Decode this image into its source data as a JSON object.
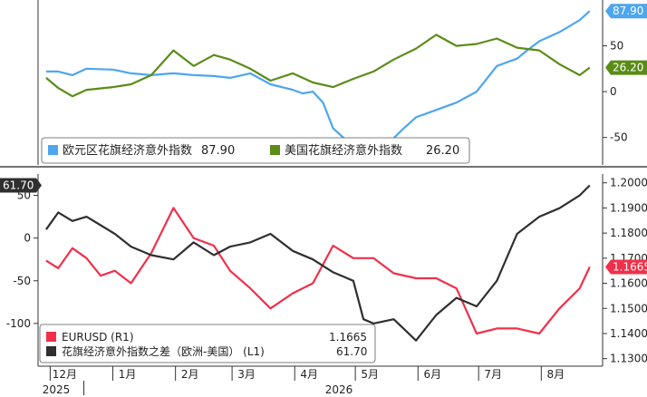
{
  "chart_data": [
    {
      "type": "line",
      "panel": "top",
      "title": "",
      "ylim": [
        -80,
        100
      ],
      "yticks": [
        -50,
        0,
        50
      ],
      "ytick_labels": [
        "-50",
        "0",
        "50"
      ],
      "grid": false,
      "legend_placement": "bottom-left",
      "series": [
        {
          "name": "欧元区花旗经济意外指数",
          "legend_value": "87.90",
          "last_label": "87.90",
          "color": "#4da6ee",
          "x": [
            "2024-11-29",
            "2024-12-05",
            "2024-12-12",
            "2024-12-19",
            "2025-01-01",
            "2025-01-10",
            "2025-01-20",
            "2025-01-31",
            "2025-02-10",
            "2025-02-20",
            "2025-02-28",
            "2025-03-10",
            "2025-03-20",
            "2025-03-31",
            "2025-04-05",
            "2025-04-10",
            "2025-04-15",
            "2025-04-20",
            "2025-04-30",
            "2025-05-05",
            "2025-05-12",
            "2025-05-18",
            "2025-05-24",
            "2025-05-31",
            "2025-06-10",
            "2025-06-20",
            "2025-06-30",
            "2025-07-10",
            "2025-07-20",
            "2025-07-25",
            "2025-07-31",
            "2025-08-10",
            "2025-08-20",
            "2025-08-25"
          ],
          "values": [
            22,
            22,
            18,
            25,
            24,
            20,
            18,
            20,
            18,
            17,
            15,
            20,
            8,
            2,
            -2,
            0,
            -12,
            -40,
            -60,
            -55,
            -68,
            -55,
            -42,
            -28,
            -20,
            -12,
            0,
            28,
            36,
            45,
            55,
            65,
            78,
            87.9
          ]
        },
        {
          "name": "美国花旗经济意外指数",
          "legend_value": "26.20",
          "last_label": "26.20",
          "color": "#5a8c17",
          "x": [
            "2024-11-29",
            "2024-12-05",
            "2024-12-12",
            "2024-12-19",
            "2025-01-01",
            "2025-01-10",
            "2025-01-20",
            "2025-01-31",
            "2025-02-10",
            "2025-02-20",
            "2025-02-28",
            "2025-03-10",
            "2025-03-20",
            "2025-03-31",
            "2025-04-10",
            "2025-04-20",
            "2025-04-30",
            "2025-05-10",
            "2025-05-20",
            "2025-05-31",
            "2025-06-10",
            "2025-06-20",
            "2025-06-30",
            "2025-07-10",
            "2025-07-20",
            "2025-07-31",
            "2025-08-10",
            "2025-08-20",
            "2025-08-25"
          ],
          "values": [
            15,
            4,
            -5,
            2,
            5,
            8,
            18,
            45,
            28,
            40,
            35,
            25,
            12,
            20,
            10,
            5,
            14,
            22,
            35,
            47,
            62,
            50,
            52,
            58,
            48,
            45,
            30,
            18,
            26.2
          ]
        }
      ]
    },
    {
      "type": "line",
      "panel": "bottom",
      "title": "",
      "x_tick_labels": [
        "12月",
        "1月",
        "2月",
        "3月",
        "4月",
        "5月",
        "6月",
        "7月",
        "8月"
      ],
      "x_year_labels": [
        "2025",
        "2026"
      ],
      "left_axis": {
        "ylim": [
          -150,
          75
        ],
        "yticks": [
          -100,
          -50,
          0,
          50
        ],
        "ytick_labels": [
          "-100",
          "-50",
          "0",
          "50"
        ]
      },
      "right_axis": {
        "ylim": [
          1.127,
          1.2035
        ],
        "yticks": [
          1.13,
          1.14,
          1.15,
          1.16,
          1.17,
          1.18,
          1.19,
          1.2
        ],
        "ytick_labels": [
          "1.1300",
          "1.1400",
          "1.1500",
          "1.1600",
          "1.1700",
          "1.1800",
          "1.1900",
          "1.2000"
        ]
      },
      "grid": false,
      "legend_placement": "bottom-left",
      "series": [
        {
          "name": "EURUSD (R1)",
          "legend_value": "1.1665",
          "last_label": "1.1665",
          "axis": "right",
          "color": "#f0304a",
          "x": [
            "2024-11-29",
            "2024-12-05",
            "2024-12-12",
            "2024-12-19",
            "2024-12-26",
            "2025-01-02",
            "2025-01-10",
            "2025-01-20",
            "2025-01-31",
            "2025-02-10",
            "2025-02-20",
            "2025-02-28",
            "2025-03-10",
            "2025-03-20",
            "2025-03-31",
            "2025-04-10",
            "2025-04-20",
            "2025-04-30",
            "2025-05-10",
            "2025-05-20",
            "2025-05-31",
            "2025-06-10",
            "2025-06-20",
            "2025-06-30",
            "2025-07-10",
            "2025-07-20",
            "2025-07-31",
            "2025-08-10",
            "2025-08-20",
            "2025-08-25"
          ],
          "values": [
            1.169,
            1.166,
            1.174,
            1.17,
            1.163,
            1.165,
            1.16,
            1.172,
            1.19,
            1.178,
            1.175,
            1.165,
            1.158,
            1.15,
            1.156,
            1.16,
            1.175,
            1.17,
            1.17,
            1.164,
            1.162,
            1.162,
            1.158,
            1.14,
            1.142,
            1.142,
            1.14,
            1.15,
            1.158,
            1.1665
          ]
        },
        {
          "name": "花旗经济意外指数之差（欧洲-美国） (L1)",
          "legend_value": "61.70",
          "last_label": "61.70",
          "axis": "left",
          "color": "#2f2f2f",
          "x": [
            "2024-11-29",
            "2024-12-05",
            "2024-12-12",
            "2024-12-19",
            "2024-12-26",
            "2025-01-02",
            "2025-01-10",
            "2025-01-20",
            "2025-01-31",
            "2025-02-10",
            "2025-02-20",
            "2025-02-28",
            "2025-03-10",
            "2025-03-20",
            "2025-03-31",
            "2025-04-10",
            "2025-04-20",
            "2025-04-30",
            "2025-05-05",
            "2025-05-10",
            "2025-05-20",
            "2025-05-31",
            "2025-06-10",
            "2025-06-20",
            "2025-06-30",
            "2025-07-10",
            "2025-07-20",
            "2025-07-31",
            "2025-08-10",
            "2025-08-20",
            "2025-08-25"
          ],
          "values": [
            10,
            30,
            20,
            25,
            15,
            5,
            -10,
            -20,
            -25,
            -5,
            -20,
            -10,
            -5,
            5,
            -15,
            -25,
            -40,
            -50,
            -95,
            -100,
            -95,
            -120,
            -90,
            -70,
            -80,
            -50,
            5,
            25,
            35,
            50,
            61.7
          ]
        }
      ]
    }
  ]
}
